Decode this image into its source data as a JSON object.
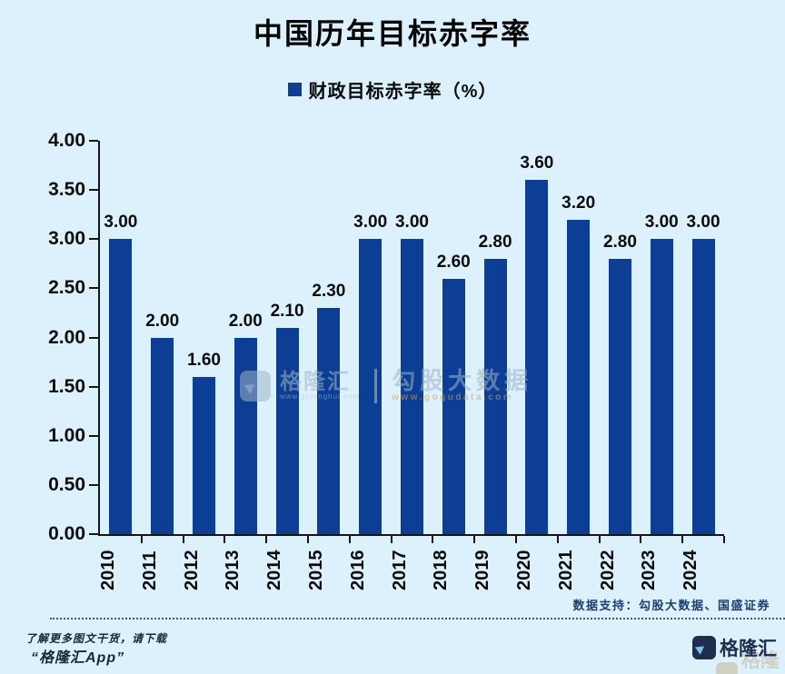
{
  "title": "中国历年目标赤字率",
  "legend": {
    "label": "财政目标赤字率（%）"
  },
  "chart_data": {
    "type": "bar",
    "title": "中国历年目标赤字率",
    "series_name": "财政目标赤字率（%）",
    "categories": [
      "2010",
      "2011",
      "2012",
      "2013",
      "2014",
      "2015",
      "2016",
      "2017",
      "2018",
      "2019",
      "2020",
      "2021",
      "2022",
      "2023",
      "2024"
    ],
    "values": [
      3.0,
      2.0,
      1.6,
      2.0,
      2.1,
      2.3,
      3.0,
      3.0,
      2.6,
      2.8,
      3.6,
      3.2,
      2.8,
      3.0,
      3.0
    ],
    "value_labels": [
      "3.00",
      "2.00",
      "1.60",
      "2.00",
      "2.10",
      "2.30",
      "3.00",
      "3.00",
      "2.60",
      "2.80",
      "3.60",
      "3.20",
      "2.80",
      "3.00",
      "3.00"
    ],
    "ylim": [
      0,
      4
    ],
    "ytick_labels": [
      "4.00",
      "3.50",
      "3.00",
      "2.50",
      "2.00",
      "1.50",
      "1.00",
      "0.50",
      "0.00"
    ],
    "xlabel": "",
    "ylabel": "",
    "grid": false,
    "legend_position": "top-center",
    "bar_color": "#0d3e95"
  },
  "watermarks": {
    "center_brand": "格隆汇",
    "center_brand_url": "www.gelonghui.com",
    "center_partner": "勾股大数据",
    "center_partner_url": "www.gogudata.com",
    "corner_brand_ghost": "格隆汇"
  },
  "footer": {
    "data_support": "数据支持：勾股大数据、国盛证券",
    "promo_line1": "了解更多图文干货，请下载",
    "promo_line2": "“格隆汇App”",
    "brand": "格隆汇"
  },
  "colors": {
    "background": "#ddf1fc",
    "bar": "#0d3e95",
    "axis": "#151515",
    "text": "#0b0b0b",
    "footer_navy": "#1e3d6a",
    "logo_navy": "#1d2e4e",
    "watermark_gray_blue": "#9db2c7",
    "watermark_tan": "#c3b28f"
  }
}
